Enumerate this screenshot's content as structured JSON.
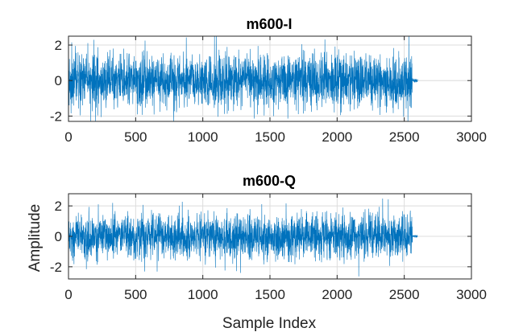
{
  "figure": {
    "xlabel": "Sample Index",
    "ylabel": "Amplitude"
  },
  "chart_data": [
    {
      "type": "line",
      "title": "m600-I",
      "xlabel": "",
      "ylabel": "",
      "xlim": [
        0,
        3000
      ],
      "ylim": [
        -2.3,
        2.5
      ],
      "xticks": [
        0,
        500,
        1000,
        1500,
        2000,
        2500,
        3000
      ],
      "xtick_labels": [
        "0",
        "500",
        "1000",
        "1500",
        "2000",
        "2500",
        "3000"
      ],
      "yticks": [
        -2,
        0,
        2
      ],
      "ytick_labels": [
        "-2",
        "0",
        "2"
      ],
      "grid": true,
      "series_color": "#0072BD",
      "signal": {
        "x_start": 0,
        "x_end": 2600,
        "active_end": 2560,
        "amplitude_std": 0.75,
        "peak": 2.5,
        "trough": -2.3,
        "tail_amplitude": 0.05,
        "seed": 600
      }
    },
    {
      "type": "line",
      "title": "m600-Q",
      "xlabel": "Sample Index",
      "ylabel": "Amplitude",
      "xlim": [
        0,
        3000
      ],
      "ylim": [
        -2.8,
        2.8
      ],
      "xticks": [
        0,
        500,
        1000,
        1500,
        2000,
        2500,
        3000
      ],
      "xtick_labels": [
        "0",
        "500",
        "1000",
        "1500",
        "2000",
        "2500",
        "3000"
      ],
      "yticks": [
        -2,
        0,
        2
      ],
      "ytick_labels": [
        "-2",
        "0",
        "2"
      ],
      "grid": true,
      "series_color": "#0072BD",
      "signal": {
        "x_start": 0,
        "x_end": 2600,
        "active_end": 2560,
        "amplitude_std": 0.75,
        "peak": 2.7,
        "trough": -2.8,
        "tail_amplitude": 0.05,
        "seed": 601
      }
    }
  ]
}
